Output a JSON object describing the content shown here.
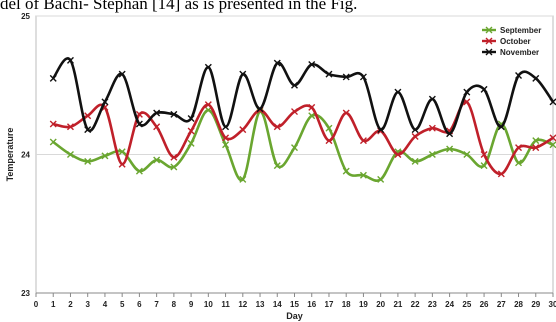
{
  "header_text": "del of Bachi- Stephan [14] as is presented in the Fig.",
  "colors": {
    "september": "#6aa630",
    "october": "#c0202a",
    "november": "#111111",
    "grid": "#d9d9d9"
  },
  "chart_data": {
    "type": "line",
    "title": "",
    "xlabel": "Day",
    "ylabel": "Temperature",
    "xlim": [
      0,
      30
    ],
    "ylim": [
      23,
      25
    ],
    "x_ticks": [
      "0",
      "1",
      "2",
      "3",
      "4",
      "5",
      "6",
      "7",
      "8",
      "9",
      "10",
      "11",
      "12",
      "13",
      "14",
      "15",
      "16",
      "17",
      "18",
      "19",
      "20",
      "21",
      "22",
      "23",
      "24",
      "25",
      "26",
      "27",
      "28",
      "29",
      "30"
    ],
    "y_ticks": [
      "23",
      "24",
      "25"
    ],
    "grid": true,
    "legend_position": "top-right",
    "x": [
      1,
      2,
      3,
      4,
      5,
      6,
      7,
      8,
      9,
      10,
      11,
      12,
      13,
      14,
      15,
      16,
      17,
      18,
      19,
      20,
      21,
      22,
      23,
      24,
      25,
      26,
      27,
      28,
      29,
      30
    ],
    "series": [
      {
        "name": "September",
        "color": "#6aa630",
        "values": [
          24.09,
          24.0,
          23.95,
          23.99,
          24.02,
          23.88,
          23.96,
          23.91,
          24.08,
          24.32,
          24.07,
          23.82,
          24.31,
          23.92,
          24.05,
          24.28,
          24.19,
          23.88,
          23.85,
          23.82,
          24.02,
          23.95,
          24.0,
          24.04,
          24.0,
          23.92,
          24.22,
          23.94,
          24.1,
          24.07
        ]
      },
      {
        "name": "October",
        "color": "#c0202a",
        "values": [
          24.22,
          24.2,
          24.28,
          24.34,
          23.93,
          24.29,
          24.2,
          23.98,
          24.17,
          24.36,
          24.12,
          24.18,
          24.32,
          24.2,
          24.31,
          24.34,
          24.1,
          24.3,
          24.1,
          24.17,
          24.0,
          24.13,
          24.19,
          24.17,
          24.38,
          24.0,
          23.86,
          24.05,
          24.05,
          24.12
        ]
      },
      {
        "name": "November",
        "color": "#111111",
        "values": [
          24.55,
          24.68,
          24.18,
          24.38,
          24.58,
          24.22,
          24.3,
          24.29,
          24.26,
          24.63,
          24.2,
          24.58,
          24.33,
          24.66,
          24.5,
          24.65,
          24.58,
          24.56,
          24.56,
          24.18,
          24.45,
          24.18,
          24.4,
          24.15,
          24.45,
          24.47,
          24.2,
          24.57,
          24.55,
          24.38
        ]
      }
    ]
  }
}
